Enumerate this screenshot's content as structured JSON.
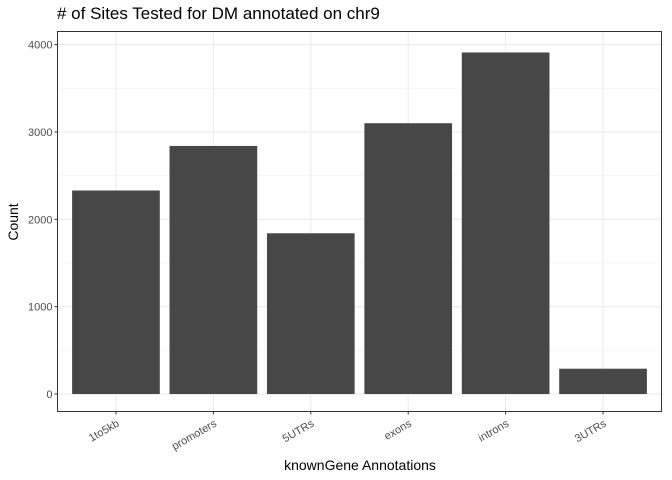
{
  "chart_data": {
    "type": "bar",
    "title": "# of Sites Tested for DM annotated on chr9",
    "xlabel": "knownGene Annotations",
    "ylabel": "Count",
    "categories": [
      "1to5kb",
      "promoters",
      "5UTRs",
      "exons",
      "introns",
      "3UTRs"
    ],
    "values": [
      2330,
      2840,
      1840,
      3100,
      3910,
      290
    ],
    "ylim": [
      -200,
      4150
    ],
    "yticks": [
      0,
      1000,
      2000,
      3000,
      4000
    ],
    "grid": true,
    "bar_color": "#474747"
  }
}
